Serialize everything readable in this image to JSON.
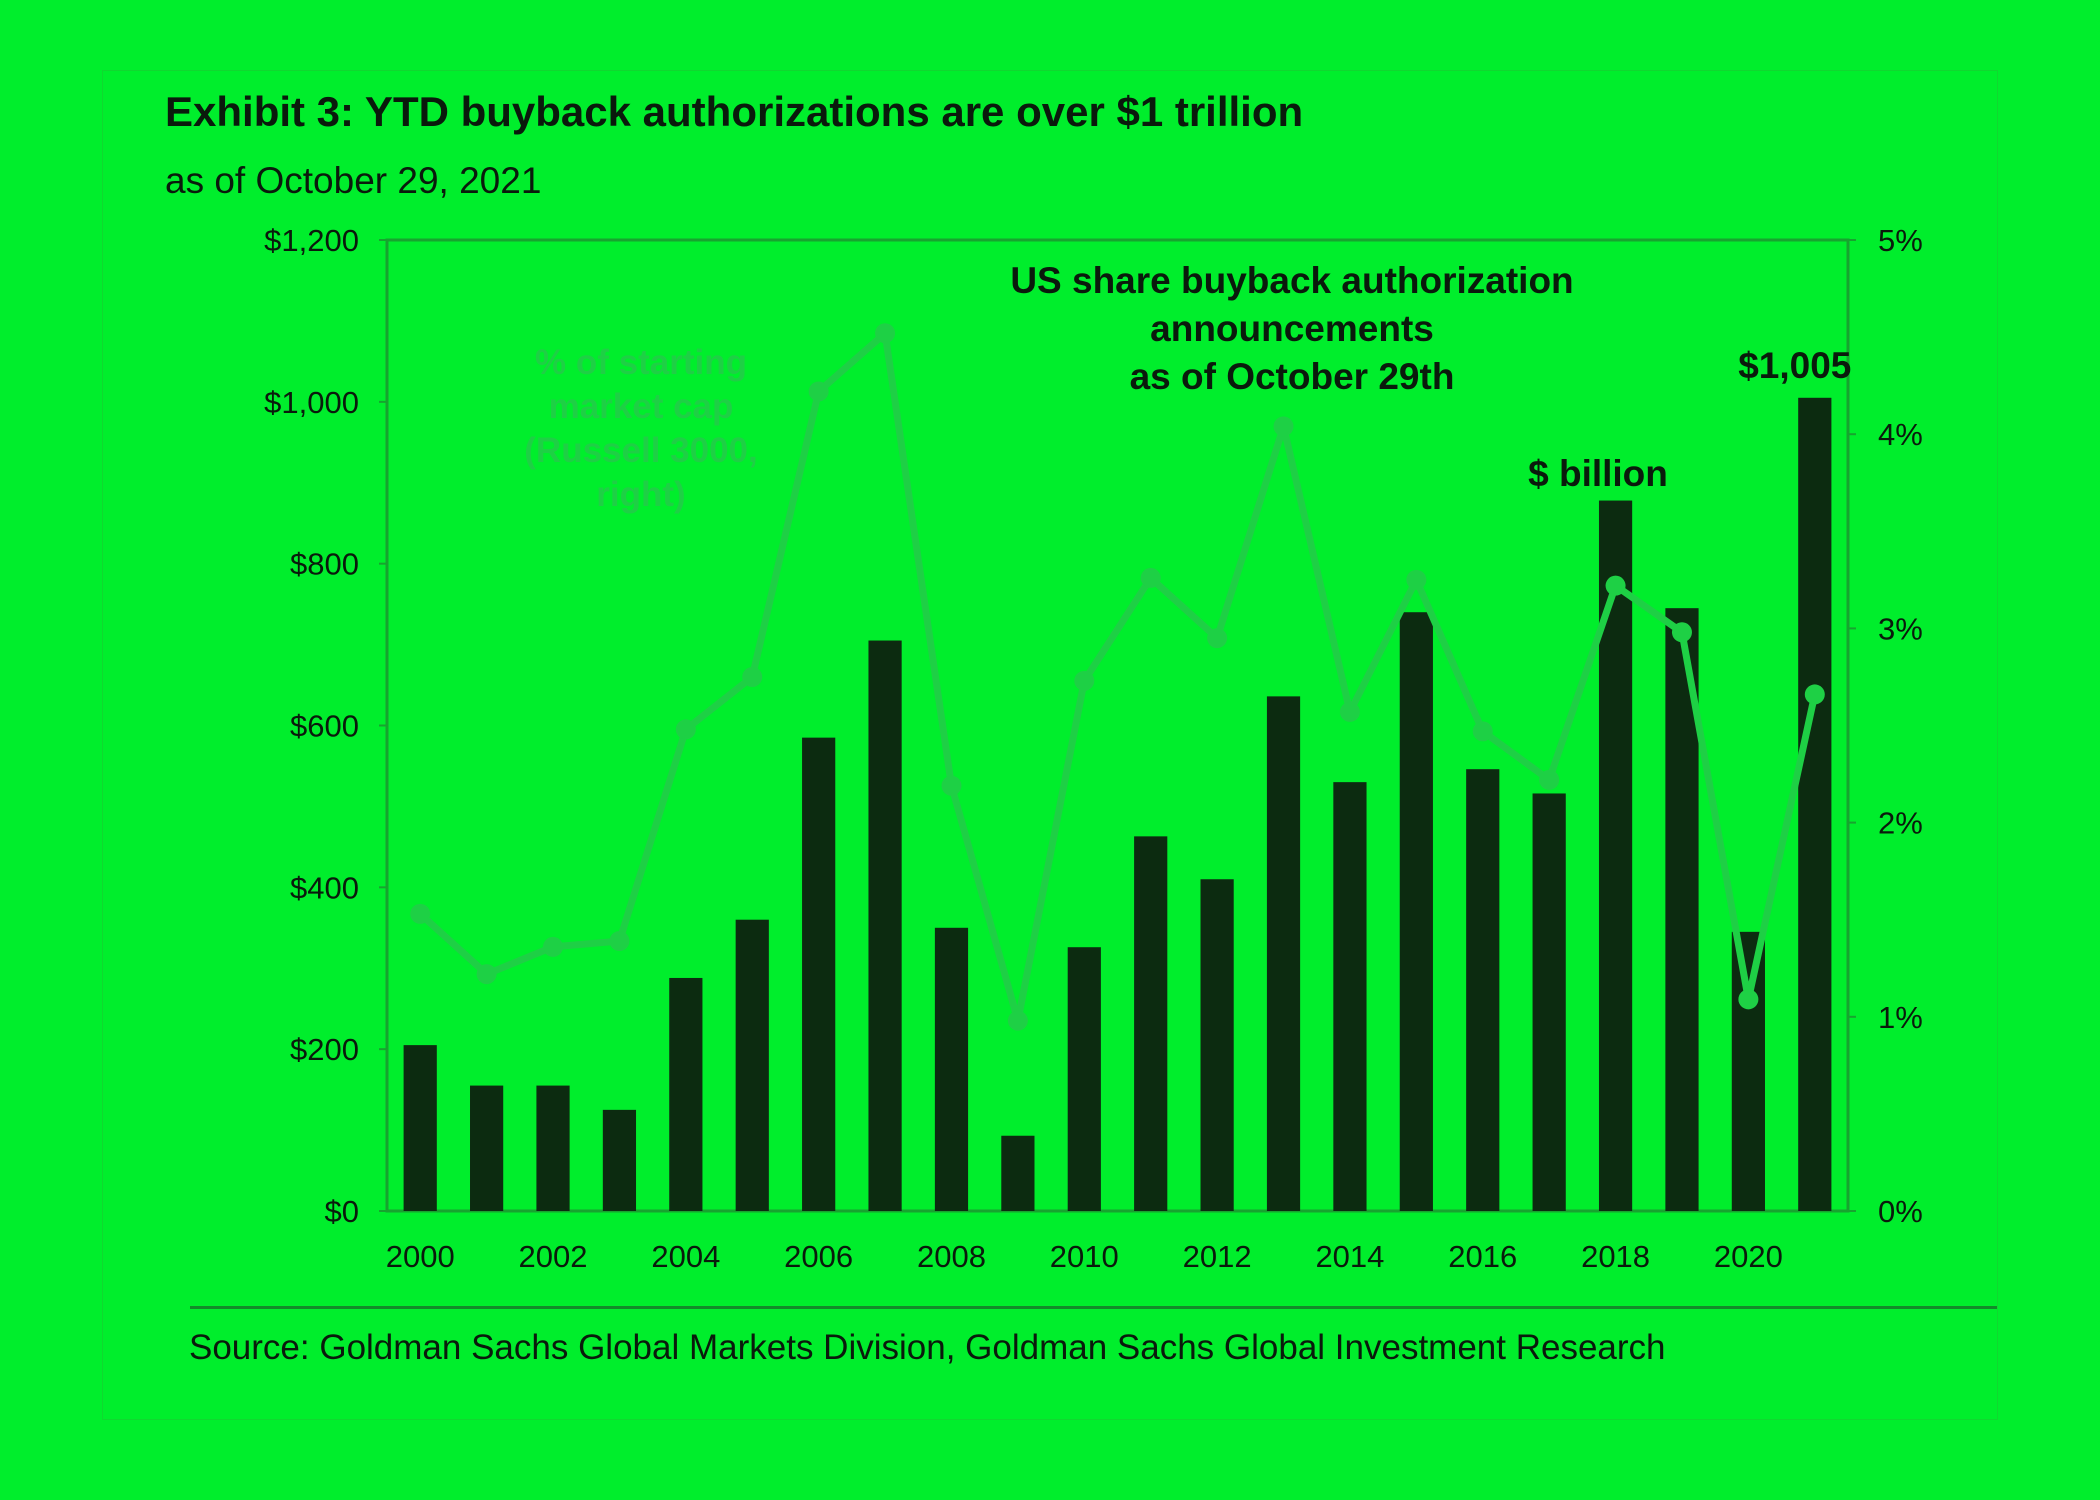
{
  "header": {
    "title": "Exhibit 3: YTD buyback authorizations are over $1 trillion",
    "subtitle": "as of October 29, 2021"
  },
  "footer": {
    "source": "Source: Goldman Sachs Global Markets Division, Goldman Sachs Global Investment Research"
  },
  "colors": {
    "background": "#00ee2c",
    "bars": "#0c2b10",
    "line": "#1ed045",
    "axis": "#17a32f",
    "text": "#0a1a0c"
  },
  "chart_data": {
    "type": "bar",
    "title": "US share buyback authorization announcements as of October 29th",
    "title_lines": [
      "US share buyback authorization",
      "announcements",
      "as of October 29th"
    ],
    "years": [
      2000,
      2001,
      2002,
      2003,
      2004,
      2005,
      2006,
      2007,
      2008,
      2009,
      2010,
      2011,
      2012,
      2013,
      2014,
      2015,
      2016,
      2017,
      2018,
      2019,
      2020,
      2021
    ],
    "x_tick_labels": [
      "2000",
      "2002",
      "2004",
      "2006",
      "2008",
      "2010",
      "2012",
      "2014",
      "2016",
      "2018",
      "2020"
    ],
    "series": [
      {
        "name": "$ billion",
        "axis": "left",
        "kind": "bar",
        "values": [
          205,
          155,
          155,
          125,
          288,
          360,
          585,
          705,
          350,
          93,
          326,
          463,
          410,
          636,
          530,
          740,
          546,
          516,
          878,
          745,
          345,
          1005
        ]
      },
      {
        "name": "% of starting market cap (Russell 3000, right)",
        "axis": "right",
        "kind": "line",
        "values": [
          1.53,
          1.22,
          1.36,
          1.39,
          2.48,
          2.75,
          4.22,
          4.52,
          2.19,
          0.98,
          2.73,
          3.26,
          2.95,
          4.04,
          2.57,
          3.25,
          2.47,
          2.22,
          3.22,
          2.98,
          1.09,
          2.66
        ]
      }
    ],
    "y_left": {
      "lim": [
        0,
        1200
      ],
      "ticks": [
        0,
        200,
        400,
        600,
        800,
        1000,
        1200
      ],
      "tick_labels": [
        "$0",
        "$200",
        "$400",
        "$600",
        "$800",
        "$1,000",
        "$1,200"
      ]
    },
    "y_right": {
      "lim": [
        0,
        5
      ],
      "ticks": [
        0,
        1,
        2,
        3,
        4,
        5
      ],
      "tick_labels": [
        "0%",
        "1%",
        "2%",
        "3%",
        "4%",
        "5%"
      ]
    },
    "annotations": {
      "bar_series_label": "$ billion",
      "line_series_label_lines": [
        "% of starting",
        "market cap",
        "(Russell 3000,",
        "right)"
      ],
      "last_bar_label": "$1,005"
    },
    "grid": false,
    "legend": "none"
  }
}
